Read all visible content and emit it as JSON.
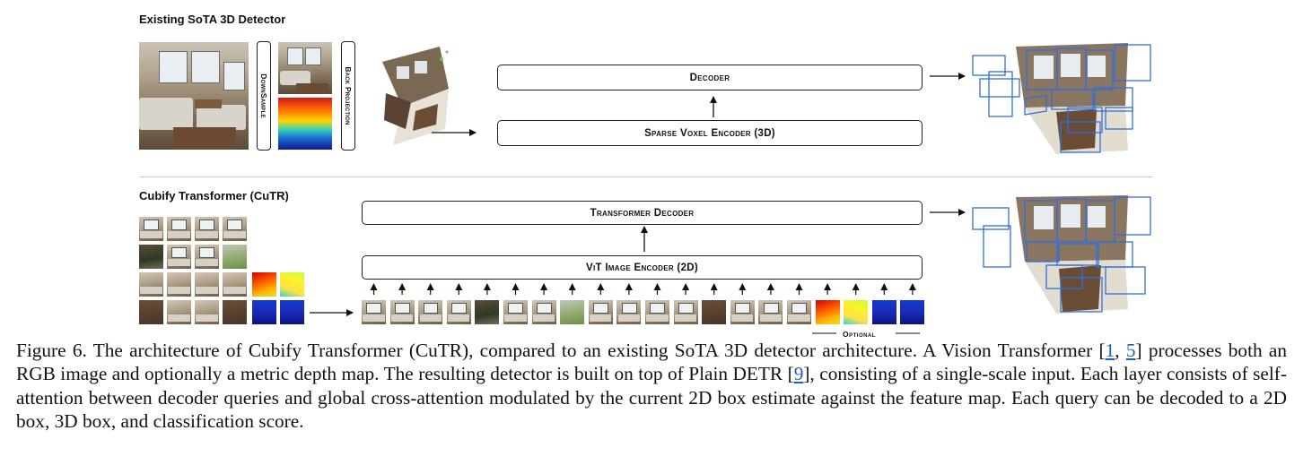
{
  "top": {
    "title": "Existing SoTA 3D Detector",
    "downsample": "DownSample",
    "back_projection": "Back Projection",
    "decoder": "Decoder",
    "sparse_voxel_encoder": "Sparse Voxel Encoder (3D)"
  },
  "bottom": {
    "title": "Cubify Transformer (CuTR)",
    "transformer_decoder": "Transformer Decoder",
    "vit_encoder": "ViT Image Encoder (2D)",
    "optional": "Optional"
  },
  "caption": {
    "p1": "Figure 6. The architecture of Cubify Transformer (CuTR), compared to an existing SoTA 3D detector architecture. A Vision Transformer [",
    "ref1": "1",
    "sep": ", ",
    "ref2": "5",
    "p2": "] processes both an RGB image and optionally a metric depth map. The resulting detector is built on top of Plain DETR [",
    "ref3": "9",
    "p3": "], consisting of a single-scale input. Each layer consists of self-attention between decoder queries and global cross-attention modulated by the current 2D box estimate against the feature map. Each query can be decoded to a 2D box, 3D box, and classification score."
  },
  "colors": {
    "box_blue": "#2f6fe0",
    "link_blue": "#1f5fb4"
  },
  "tokens": [
    "rgb",
    "rgb",
    "rgb",
    "rgb",
    "tree",
    "rgb",
    "rgb",
    "green",
    "rgb",
    "rgb",
    "rgb",
    "rgb",
    "dark",
    "rgb",
    "rgb",
    "rgb",
    "depth-o",
    "depth-y",
    "depth-b",
    "depth-b"
  ]
}
